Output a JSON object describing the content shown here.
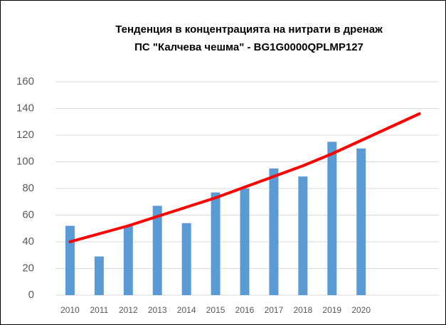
{
  "chart_data": {
    "type": "bar",
    "title": [
      "Тенденция в концентрацията на нитрати в дренаж",
      "ПС \"Калчева чешма\" - BG1G0000QPLMP127"
    ],
    "categories": [
      "2010",
      "2011",
      "2012",
      "2013",
      "2014",
      "2015",
      "2016",
      "2017",
      "2018",
      "2019",
      "2020",
      null,
      null
    ],
    "series": [
      {
        "type": "bar",
        "color": "#5b9bd5",
        "values": [
          52,
          29,
          52,
          67,
          54,
          77,
          80,
          95,
          89,
          115,
          110,
          null,
          null
        ]
      },
      {
        "type": "line",
        "color": "#ff0000",
        "values": [
          40,
          46,
          52,
          59,
          66,
          73,
          81,
          89,
          97,
          106,
          116,
          126,
          136
        ]
      }
    ],
    "ylim": [
      0,
      160
    ],
    "yticks": [
      0,
      20,
      40,
      60,
      80,
      100,
      120,
      140,
      160
    ],
    "grid": true
  }
}
